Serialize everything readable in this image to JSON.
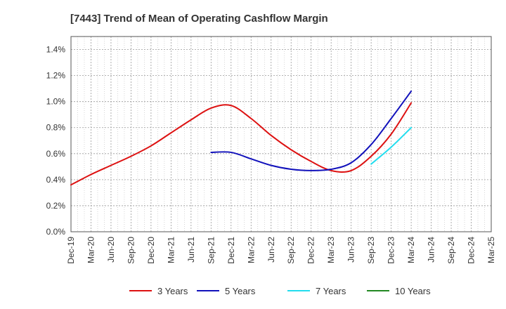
{
  "chart_data": {
    "type": "line",
    "title": "[7443]  Trend of Mean of Operating Cashflow Margin",
    "xlabel": "",
    "ylabel": "",
    "ylim": [
      0,
      1.5
    ],
    "y_ticks": [
      0.0,
      0.2,
      0.4,
      0.6,
      0.8,
      1.0,
      1.2,
      1.4
    ],
    "y_tick_labels": [
      "0.0%",
      "0.2%",
      "0.4%",
      "0.6%",
      "0.8%",
      "1.0%",
      "1.2%",
      "1.4%"
    ],
    "categories": [
      "Dec-19",
      "Mar-20",
      "Jun-20",
      "Sep-20",
      "Dec-20",
      "Mar-21",
      "Jun-21",
      "Sep-21",
      "Dec-21",
      "Mar-22",
      "Jun-22",
      "Sep-22",
      "Dec-22",
      "Mar-23",
      "Jun-23",
      "Sep-23",
      "Dec-23",
      "Mar-24",
      "Jun-24",
      "Sep-24",
      "Dec-24",
      "Mar-25"
    ],
    "grid": true,
    "legend_position": "bottom",
    "series": [
      {
        "name": "3 Years",
        "color": "#dd1111",
        "values": [
          0.36,
          0.44,
          0.51,
          0.58,
          0.66,
          0.76,
          0.86,
          0.95,
          0.97,
          0.87,
          0.74,
          0.63,
          0.54,
          0.47,
          0.47,
          0.58,
          0.75,
          0.99,
          null,
          null,
          null,
          null
        ]
      },
      {
        "name": "5 Years",
        "color": "#1111bb",
        "values": [
          null,
          null,
          null,
          null,
          null,
          null,
          null,
          0.61,
          0.61,
          0.56,
          0.51,
          0.48,
          0.47,
          0.48,
          0.53,
          0.67,
          0.87,
          1.08,
          null,
          null,
          null,
          null
        ]
      },
      {
        "name": "7 Years",
        "color": "#22ddee",
        "values": [
          null,
          null,
          null,
          null,
          null,
          null,
          null,
          null,
          null,
          null,
          null,
          null,
          null,
          null,
          null,
          0.52,
          0.65,
          0.8,
          null,
          null,
          null,
          null
        ]
      },
      {
        "name": "10 Years",
        "color": "#228822",
        "values": [
          null,
          null,
          null,
          null,
          null,
          null,
          null,
          null,
          null,
          null,
          null,
          null,
          null,
          null,
          null,
          null,
          null,
          null,
          null,
          null,
          null,
          null
        ]
      }
    ]
  }
}
